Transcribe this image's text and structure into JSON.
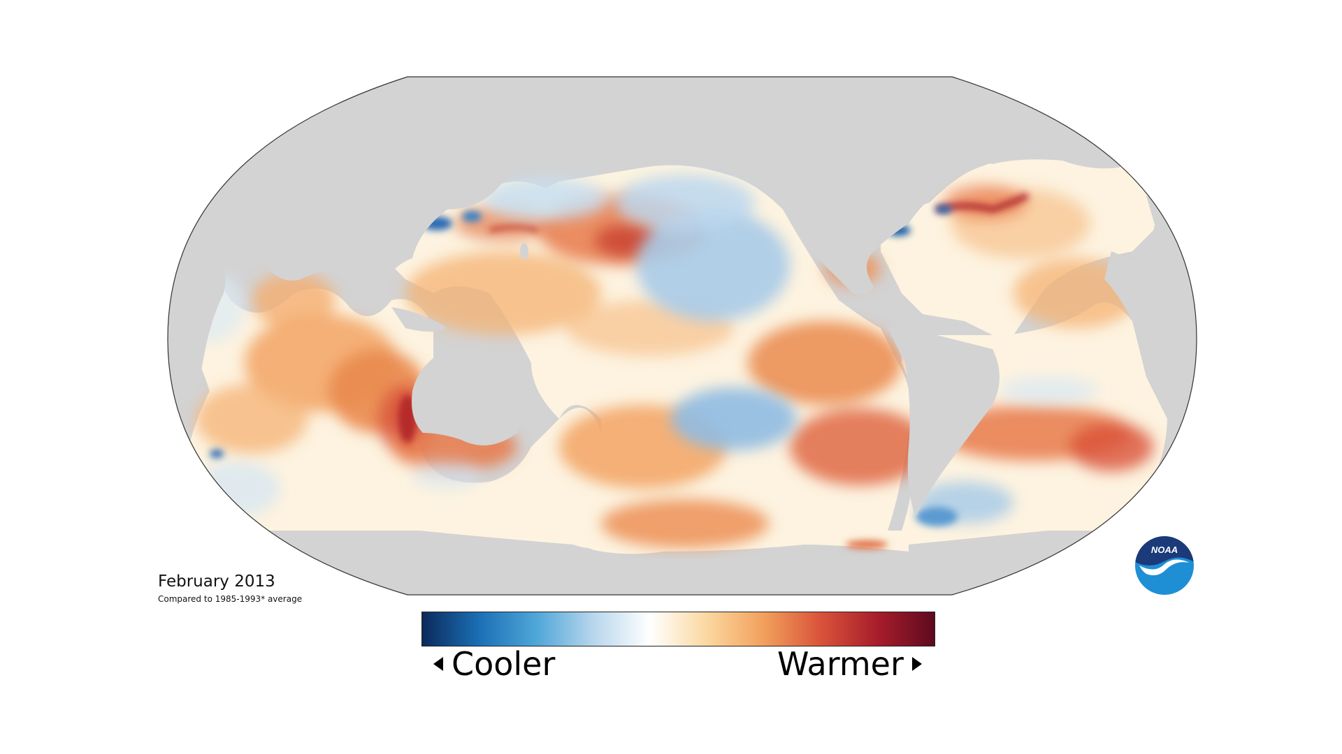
{
  "map": {
    "caption_title": "February 2013",
    "caption_subtitle": "Compared to 1985-1993* average",
    "colors": {
      "land": "#d3d3d3",
      "ocean_neutral": "#fdf6e6",
      "cool_light": "#bcd7ee",
      "cool_mid": "#7fb1de",
      "cool_dark": "#1f5fa6",
      "warm_light": "#f6c98c",
      "warm_mid": "#ea8a4e",
      "warm_dark": "#c0392b"
    }
  },
  "legend": {
    "left_label": "Cooler",
    "right_label": "Warmer",
    "gradient_stops": [
      "#0b2a5c",
      "#1b6fb5",
      "#4ea6d8",
      "#b7d6ec",
      "#ffffff",
      "#fbd8a0",
      "#f2a05c",
      "#d9533a",
      "#a81d2b",
      "#5e0a1f"
    ]
  },
  "logo": {
    "text": "NOAA",
    "icon": "noaa-logo-icon",
    "colors": {
      "top": "#1b3a7a",
      "bottom": "#1e8fd5",
      "bird": "#ffffff"
    }
  }
}
